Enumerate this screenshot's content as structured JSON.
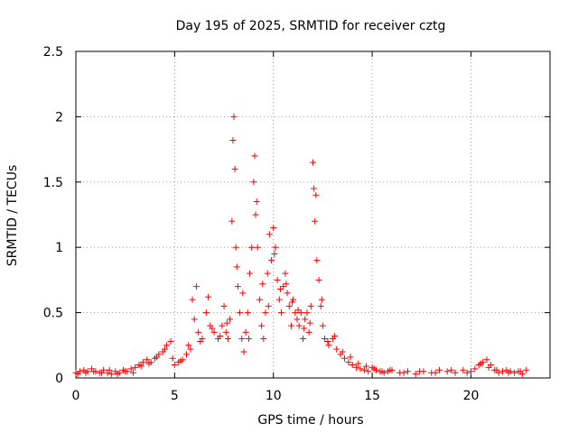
{
  "chart_data": {
    "type": "scatter",
    "title": "Day 195 of 2025, SRMTID for receiver cztg",
    "xlabel": "GPS time / hours",
    "ylabel": "SRMTID / TECUs",
    "xlim": [
      0,
      24
    ],
    "ylim": [
      0,
      2.5
    ],
    "x_ticks": [
      0,
      5,
      10,
      15,
      20
    ],
    "y_ticks": [
      0,
      0.5,
      1,
      1.5,
      2,
      2.5
    ],
    "x_tick_labels": [
      "0",
      "5",
      "10",
      "15",
      "20"
    ],
    "y_tick_labels": [
      "0",
      "0.5",
      "1",
      "1.5",
      "2",
      "2.5"
    ],
    "grid": true,
    "marker": "+",
    "color": "#ff0000",
    "series": [
      {
        "name": "SRMTID",
        "x": [
          0.0,
          0.2,
          0.4,
          0.6,
          0.8,
          1.0,
          1.2,
          1.4,
          1.6,
          1.8,
          2.0,
          2.2,
          2.4,
          2.6,
          2.8,
          3.0,
          3.2,
          3.4,
          3.6,
          3.8,
          4.0,
          4.2,
          4.4,
          4.6,
          4.8,
          5.0,
          5.2,
          5.4,
          5.6,
          5.8,
          5.9,
          6.0,
          6.1,
          6.2,
          6.4,
          6.6,
          6.7,
          6.8,
          7.0,
          7.2,
          7.4,
          7.5,
          7.6,
          7.7,
          7.8,
          7.9,
          7.95,
          8.0,
          8.05,
          8.1,
          8.2,
          8.3,
          8.4,
          8.5,
          8.6,
          8.7,
          8.8,
          8.9,
          9.0,
          9.05,
          9.1,
          9.2,
          9.3,
          9.4,
          9.5,
          9.6,
          9.7,
          9.8,
          9.9,
          10.0,
          10.1,
          10.2,
          10.3,
          10.4,
          10.5,
          10.6,
          10.7,
          10.8,
          10.9,
          11.0,
          11.1,
          11.2,
          11.3,
          11.4,
          11.5,
          11.6,
          11.7,
          11.8,
          11.9,
          12.0,
          12.05,
          12.1,
          12.2,
          12.3,
          12.4,
          12.5,
          12.6,
          12.8,
          13.0,
          13.2,
          13.4,
          13.6,
          13.8,
          14.0,
          14.2,
          14.4,
          14.6,
          14.8,
          15.0,
          15.2,
          15.4,
          15.6,
          15.8,
          16.0,
          16.4,
          16.8,
          17.2,
          17.6,
          18.0,
          18.4,
          18.8,
          19.2,
          19.6,
          20.0,
          20.2,
          20.4,
          20.6,
          20.8,
          21.0,
          21.2,
          21.4,
          21.6,
          21.8,
          22.0,
          22.2,
          22.4,
          22.6,
          22.8,
          0.1,
          0.5,
          0.9,
          1.3,
          1.7,
          2.1,
          2.5,
          2.9,
          3.3,
          3.7,
          4.1,
          4.5,
          4.9,
          5.3,
          5.7,
          6.3,
          6.9,
          7.3,
          7.65,
          8.15,
          8.45,
          8.75,
          9.15,
          9.45,
          9.75,
          10.05,
          10.35,
          10.65,
          10.95,
          11.25,
          11.55,
          11.85,
          12.15,
          12.45,
          12.75,
          13.1,
          13.5,
          13.9,
          14.3,
          14.7,
          15.1,
          15.5,
          15.9,
          16.6,
          17.4,
          18.2,
          19.0,
          19.8,
          20.5,
          20.9,
          21.3,
          21.9,
          22.5
        ],
        "y": [
          0.04,
          0.05,
          0.06,
          0.05,
          0.07,
          0.05,
          0.04,
          0.06,
          0.04,
          0.03,
          0.05,
          0.04,
          0.06,
          0.05,
          0.07,
          0.08,
          0.1,
          0.12,
          0.14,
          0.12,
          0.15,
          0.18,
          0.2,
          0.25,
          0.28,
          0.1,
          0.12,
          0.14,
          0.18,
          0.22,
          0.6,
          0.45,
          0.7,
          0.35,
          0.3,
          0.5,
          0.62,
          0.4,
          0.35,
          0.3,
          0.4,
          0.55,
          0.35,
          0.3,
          0.45,
          1.2,
          1.82,
          2.0,
          1.6,
          1.0,
          0.7,
          0.5,
          0.3,
          0.2,
          0.35,
          0.5,
          0.8,
          1.0,
          1.5,
          1.7,
          1.25,
          1.0,
          0.6,
          0.4,
          0.3,
          0.5,
          0.8,
          1.1,
          0.9,
          1.15,
          1.0,
          0.75,
          0.6,
          0.5,
          0.7,
          0.8,
          0.65,
          0.55,
          0.4,
          0.6,
          0.5,
          0.45,
          0.4,
          0.5,
          0.3,
          0.45,
          0.5,
          0.35,
          0.55,
          1.65,
          1.45,
          1.2,
          0.9,
          0.75,
          0.55,
          0.4,
          0.3,
          0.25,
          0.3,
          0.22,
          0.18,
          0.15,
          0.12,
          0.1,
          0.08,
          0.07,
          0.06,
          0.05,
          0.08,
          0.06,
          0.05,
          0.04,
          0.05,
          0.06,
          0.04,
          0.05,
          0.03,
          0.05,
          0.04,
          0.06,
          0.05,
          0.04,
          0.06,
          0.05,
          0.07,
          0.1,
          0.12,
          0.14,
          0.1,
          0.06,
          0.04,
          0.05,
          0.06,
          0.05,
          0.04,
          0.05,
          0.03,
          0.06,
          0.03,
          0.04,
          0.05,
          0.04,
          0.06,
          0.03,
          0.05,
          0.04,
          0.09,
          0.11,
          0.16,
          0.22,
          0.15,
          0.13,
          0.25,
          0.28,
          0.38,
          0.32,
          0.42,
          0.85,
          0.65,
          0.3,
          1.35,
          0.72,
          0.55,
          0.95,
          0.68,
          0.72,
          0.58,
          0.52,
          0.38,
          0.42,
          1.4,
          0.6,
          0.28,
          0.32,
          0.2,
          0.16,
          0.11,
          0.09,
          0.07,
          0.05,
          0.06,
          0.04,
          0.05,
          0.04,
          0.06,
          0.04,
          0.11,
          0.08,
          0.06,
          0.04,
          0.05
        ]
      }
    ]
  }
}
